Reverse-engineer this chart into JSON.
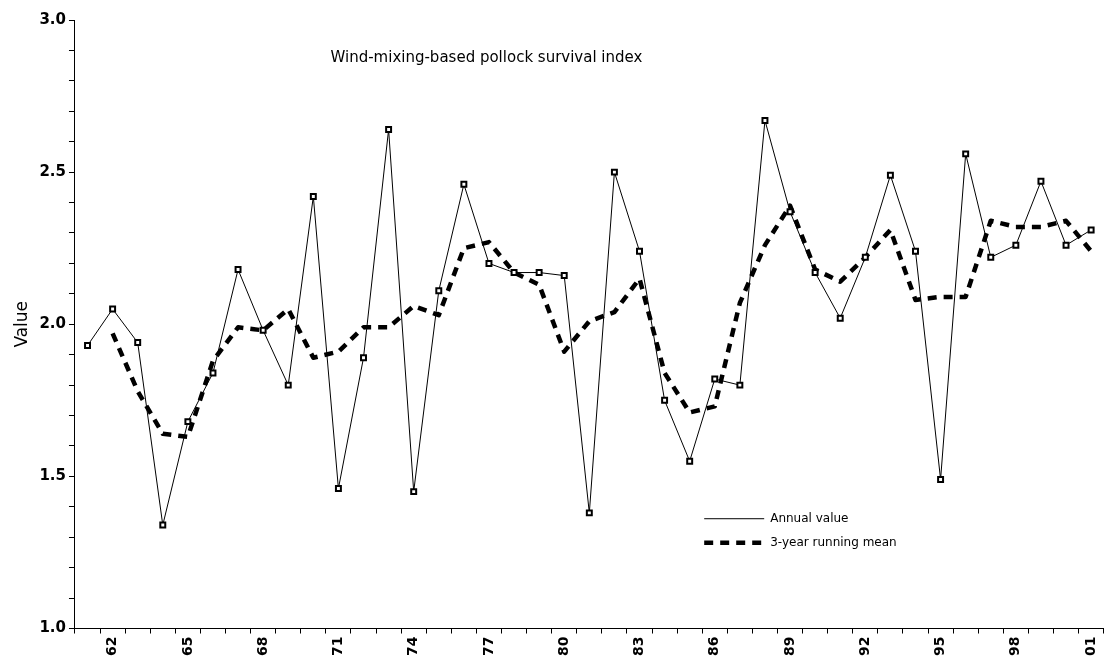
{
  "chart_data": {
    "type": "line",
    "title": "Wind-mixing-based pollock survival index",
    "ylabel": "Value",
    "categories": [
      null,
      "62",
      null,
      null,
      "65",
      null,
      null,
      "68",
      null,
      null,
      "71",
      null,
      null,
      "74",
      null,
      null,
      "77",
      null,
      null,
      "80",
      null,
      null,
      "83",
      null,
      null,
      "86",
      null,
      null,
      "89",
      null,
      null,
      "92",
      null,
      null,
      "95",
      null,
      null,
      "98",
      null,
      null,
      "01"
    ],
    "series": [
      {
        "name": "Annual value",
        "color": "#000000",
        "marker": "square",
        "line_style": "solid",
        "values": [
          1.93,
          2.05,
          1.94,
          1.34,
          1.68,
          1.84,
          2.18,
          1.98,
          1.8,
          2.42,
          1.46,
          1.89,
          2.64,
          1.45,
          2.11,
          2.46,
          2.2,
          2.17,
          2.17,
          2.16,
          1.38,
          2.5,
          2.24,
          1.75,
          1.55,
          1.82,
          1.8,
          2.67,
          2.37,
          2.17,
          2.02,
          2.22,
          2.49,
          2.24,
          1.49,
          2.56,
          2.22,
          2.26,
          2.47,
          2.26,
          2.31
        ]
      },
      {
        "name": "3-year running mean",
        "color": "#000000",
        "marker": "none",
        "line_style": "dashed",
        "values": [
          null,
          1.97,
          1.78,
          1.64,
          1.63,
          1.88,
          1.99,
          1.98,
          2.05,
          1.89,
          1.91,
          1.99,
          1.99,
          2.06,
          2.03,
          2.25,
          2.27,
          2.17,
          2.13,
          1.91,
          2.01,
          2.04,
          2.15,
          1.84,
          1.71,
          1.73,
          2.07,
          2.26,
          2.39,
          2.18,
          2.14,
          2.22,
          2.31,
          2.08,
          2.09,
          2.09,
          2.34,
          2.32,
          2.32,
          2.34,
          2.24
        ]
      }
    ],
    "ylim": [
      1.0,
      3.0
    ],
    "yticks": [
      {
        "value": 1.0,
        "label": "1.0"
      },
      {
        "value": 1.1,
        "label": null
      },
      {
        "value": 1.2,
        "label": null
      },
      {
        "value": 1.3,
        "label": null
      },
      {
        "value": 1.4,
        "label": null
      },
      {
        "value": 1.5,
        "label": "1.5"
      },
      {
        "value": 1.6,
        "label": null
      },
      {
        "value": 1.7,
        "label": null
      },
      {
        "value": 1.8,
        "label": null
      },
      {
        "value": 1.9,
        "label": null
      },
      {
        "value": 2.0,
        "label": "2.0"
      },
      {
        "value": 2.1,
        "label": null
      },
      {
        "value": 2.2,
        "label": null
      },
      {
        "value": 2.3,
        "label": null
      },
      {
        "value": 2.4,
        "label": null
      },
      {
        "value": 2.5,
        "label": "2.5"
      },
      {
        "value": 2.6,
        "label": null
      },
      {
        "value": 2.7,
        "label": null
      },
      {
        "value": 2.8,
        "label": null
      },
      {
        "value": 2.9,
        "label": null
      },
      {
        "value": 3.0,
        "label": "3.0"
      }
    ],
    "grid": false,
    "legend": "bottom right"
  }
}
